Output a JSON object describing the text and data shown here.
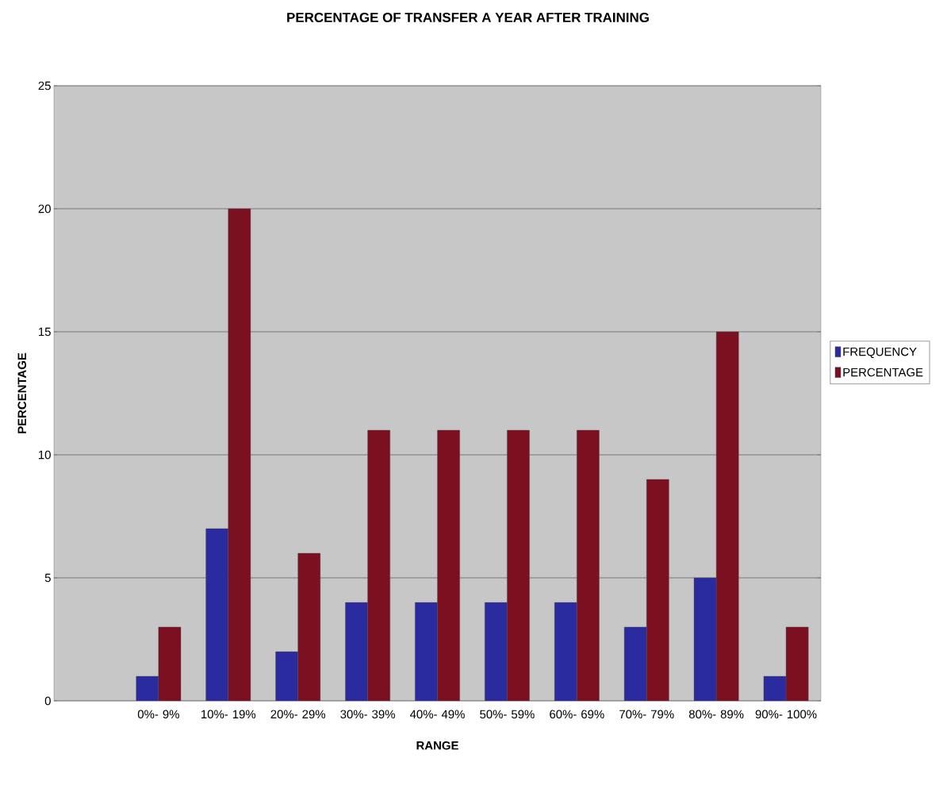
{
  "chart_data": {
    "type": "bar",
    "title": "PERCENTAGE OF TRANSFER A YEAR AFTER TRAINING",
    "xlabel": "RANGE",
    "ylabel": "PERCENTAGE",
    "categories": [
      null,
      "0%- 9%",
      "10%- 19%",
      "20%- 29%",
      "30%- 39%",
      "40%- 49%",
      "50%- 59%",
      "60%- 69%",
      "70%- 79%",
      "80%- 89%",
      "90%- 100%"
    ],
    "series": [
      {
        "name": "FREQUENCY",
        "color": "#2b2ba0",
        "values": [
          null,
          1,
          7,
          2,
          4,
          4,
          4,
          4,
          3,
          5,
          1
        ]
      },
      {
        "name": "PERCENTAGE",
        "color": "#7a1020",
        "values": [
          null,
          3,
          20,
          6,
          11,
          11,
          11,
          11,
          9,
          15,
          3
        ]
      }
    ],
    "ylim": [
      0,
      25
    ],
    "yticks": [
      0,
      5,
      10,
      15,
      20,
      25
    ],
    "grid": "y",
    "legend": "right"
  }
}
